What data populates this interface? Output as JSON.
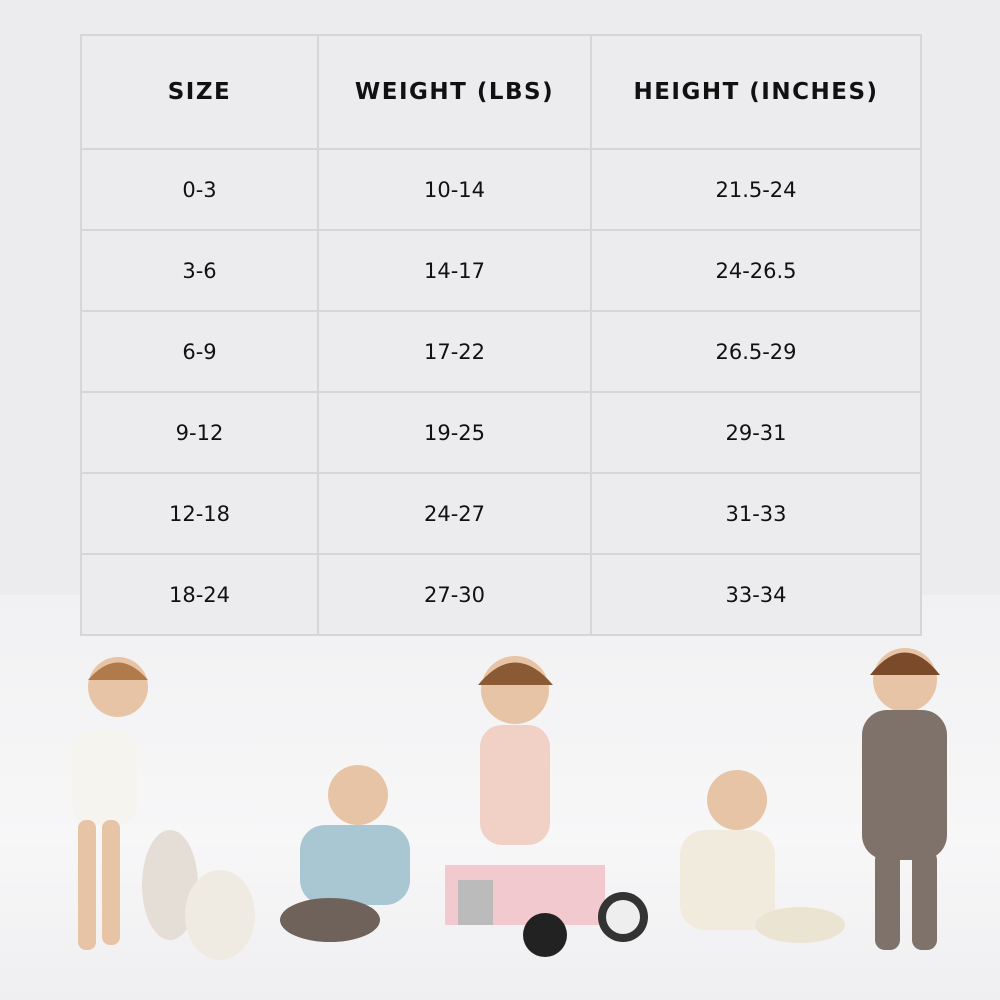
{
  "size_chart": {
    "headers": [
      "SIZE",
      "WEIGHT (LBS)",
      "HEIGHT (INCHES)"
    ],
    "rows": [
      [
        "0-3",
        "10-14",
        "21.5-24"
      ],
      [
        "3-6",
        "14-17",
        "24-26.5"
      ],
      [
        "6-9",
        "17-22",
        "26.5-29"
      ],
      [
        "9-12",
        "19-25",
        "29-31"
      ],
      [
        "12-18",
        "24-27",
        "31-33"
      ],
      [
        "18-24",
        "27-30",
        "33-34"
      ]
    ]
  },
  "colors": {
    "background": "#ececee",
    "grid_line": "#d6d6da",
    "text": "#111111"
  }
}
